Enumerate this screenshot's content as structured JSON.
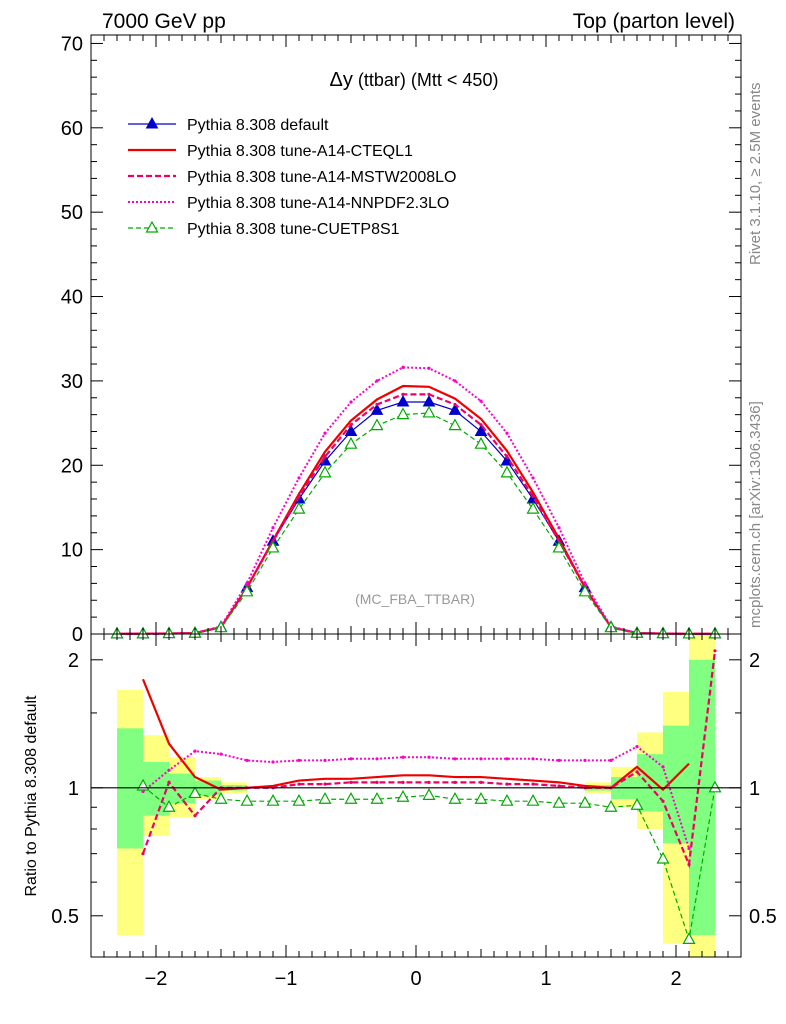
{
  "header": {
    "energy_label": "7000 GeV pp",
    "process_label": "Top (parton level)"
  },
  "side_text": {
    "rivet": "Rivet 3.1.10, ≥ 2.5M events",
    "source": "mcplots.cern.ch [arXiv:1306.3436]"
  },
  "chart_data": [
    {
      "type": "line",
      "panel": "main",
      "title_main": "Δy",
      "title_rest": " (ttbar) (Mtt < 450)",
      "watermark": "(MC_FBA_TTBAR)",
      "xlim": [
        -2.5,
        2.5
      ],
      "ylim": [
        0,
        71
      ],
      "yticks": [
        0,
        10,
        20,
        30,
        40,
        50,
        60,
        70
      ],
      "x": [
        -2.3,
        -2.1,
        -1.9,
        -1.7,
        -1.5,
        -1.3,
        -1.1,
        -0.9,
        -0.7,
        -0.5,
        -0.3,
        -0.1,
        0.1,
        0.3,
        0.5,
        0.7,
        0.9,
        1.1,
        1.3,
        1.5,
        1.7,
        1.9,
        2.1,
        2.3
      ],
      "series": [
        {
          "name": "Pythia 8.308 default",
          "color": "#0000cc",
          "values": [
            0.02,
            0.02,
            0.05,
            0.1,
            0.8,
            5.5,
            11.0,
            16.0,
            20.5,
            24.0,
            26.5,
            27.5,
            27.5,
            26.5,
            24.0,
            20.5,
            16.0,
            11.0,
            5.5,
            0.8,
            0.1,
            0.05,
            0.02,
            0.02
          ]
        },
        {
          "name": "Pythia 8.308 tune-A14-CTEQL1",
          "color": "#ee0000",
          "values": [
            0.02,
            0.04,
            0.06,
            0.11,
            0.8,
            5.5,
            11.1,
            16.6,
            21.6,
            25.3,
            27.8,
            29.4,
            29.3,
            27.9,
            25.5,
            21.7,
            16.8,
            11.3,
            5.5,
            0.8,
            0.12,
            0.05,
            0.02,
            0.02
          ]
        },
        {
          "name": "Pythia 8.308 tune-A14-MSTW2008LO",
          "color": "#ee0066",
          "values": [
            0.02,
            0.02,
            0.05,
            0.09,
            0.8,
            5.5,
            11.0,
            16.3,
            21.0,
            24.8,
            27.2,
            28.4,
            28.4,
            27.2,
            24.8,
            21.0,
            16.3,
            11.0,
            5.5,
            0.8,
            0.09,
            0.05,
            0.02,
            0.02
          ]
        },
        {
          "name": "Pythia 8.308 tune-A14-NNPDF2.3LO",
          "color": "#ff00cc",
          "values": [
            0.02,
            0.03,
            0.06,
            0.12,
            0.9,
            6.0,
            12.6,
            18.5,
            23.8,
            27.5,
            30.0,
            31.6,
            31.5,
            30.0,
            27.6,
            23.8,
            18.5,
            12.6,
            6.0,
            0.9,
            0.12,
            0.06,
            0.03,
            0.02
          ]
        },
        {
          "name": "Pythia 8.308 tune-CUETP8S1",
          "color": "#00aa00",
          "values": [
            0.02,
            0.02,
            0.05,
            0.09,
            0.75,
            5.0,
            10.2,
            14.8,
            19.1,
            22.5,
            24.7,
            26.0,
            26.2,
            24.7,
            22.5,
            19.1,
            14.8,
            10.2,
            5.0,
            0.75,
            0.09,
            0.04,
            0.01,
            0.02
          ]
        }
      ]
    },
    {
      "type": "line",
      "panel": "ratio",
      "ylabel": "Ratio to Pythia 8.308 default",
      "ylim": [
        0.4,
        2.3
      ],
      "yscale": "log",
      "xticks": [
        -2,
        -1,
        0,
        1,
        2
      ],
      "xtick_labels": [
        "−2",
        "−1",
        "0",
        "1",
        "2"
      ],
      "yticks": [
        0.5,
        1,
        2
      ],
      "ytick_labels": [
        "0.5",
        "1",
        "2"
      ],
      "x": [
        -2.1,
        -1.9,
        -1.7,
        -1.5,
        -1.3,
        -1.1,
        -0.9,
        -0.7,
        -0.5,
        -0.3,
        -0.1,
        0.1,
        0.3,
        0.5,
        0.7,
        0.9,
        1.1,
        1.3,
        1.5,
        1.7,
        1.9,
        2.1,
        2.3
      ],
      "band_x": [
        -2.2,
        -2.0,
        -1.8,
        -1.6,
        -1.4,
        1.4,
        1.6,
        1.8,
        2.0,
        2.2
      ],
      "band_outer": [
        [
          0.45,
          1.7
        ],
        [
          0.77,
          1.33
        ],
        [
          0.85,
          1.18
        ],
        [
          0.94,
          1.06
        ],
        [
          0.97,
          1.03
        ],
        [
          0.97,
          1.03
        ],
        [
          0.9,
          1.12
        ],
        [
          0.8,
          1.35
        ],
        [
          0.43,
          1.68
        ],
        [
          0.35,
          2.3
        ]
      ],
      "band_inner": [
        [
          0.72,
          1.38
        ],
        [
          0.86,
          1.15
        ],
        [
          0.92,
          1.08
        ],
        [
          0.96,
          1.04
        ],
        [
          0.985,
          1.015
        ],
        [
          0.985,
          1.015
        ],
        [
          0.94,
          1.06
        ],
        [
          0.88,
          1.2
        ],
        [
          0.74,
          1.4
        ],
        [
          0.45,
          2.0
        ]
      ],
      "band_colors": {
        "outer": "#ffff80",
        "inner": "#80ff80"
      },
      "series": [
        {
          "name": "Pythia 8.308 default",
          "color": "#0000cc",
          "values": [
            1.0,
            1.0,
            1.0,
            1.0,
            1.0,
            1.0,
            1.0,
            1.0,
            1.0,
            1.0,
            1.0,
            1.0,
            1.0,
            1.0,
            1.0,
            1.0,
            1.0,
            1.0,
            1.0,
            1.0,
            1.0,
            1.0,
            1.0
          ]
        },
        {
          "name": "Pythia 8.308 tune-A14-CTEQL1",
          "color": "#ee0000",
          "values": [
            1.8,
            1.27,
            1.06,
            0.99,
            1.0,
            1.01,
            1.04,
            1.05,
            1.05,
            1.06,
            1.07,
            1.07,
            1.06,
            1.06,
            1.05,
            1.04,
            1.03,
            1.01,
            1.0,
            1.12,
            0.99,
            1.14,
            null
          ]
        },
        {
          "name": "Pythia 8.308 tune-A14-MSTW2008LO",
          "color": "#ee0066",
          "values": [
            0.7,
            1.03,
            0.86,
            1.0,
            1.0,
            1.0,
            1.02,
            1.02,
            1.03,
            1.03,
            1.03,
            1.03,
            1.03,
            1.03,
            1.02,
            1.02,
            1.01,
            1.0,
            1.0,
            1.09,
            0.93,
            0.66,
            2.1
          ]
        },
        {
          "name": "Pythia 8.308 tune-A14-NNPDF2.3LO",
          "color": "#ff00cc",
          "values": [
            0.98,
            1.1,
            1.22,
            1.2,
            1.16,
            1.15,
            1.16,
            1.16,
            1.17,
            1.17,
            1.18,
            1.18,
            1.17,
            1.17,
            1.17,
            1.17,
            1.16,
            1.16,
            1.16,
            1.25,
            1.12,
            0.72,
            null
          ]
        },
        {
          "name": "Pythia 8.308 tune-CUETP8S1",
          "color": "#00aa00",
          "values": [
            1.01,
            0.9,
            0.97,
            0.94,
            0.93,
            0.93,
            0.93,
            0.94,
            0.94,
            0.94,
            0.95,
            0.96,
            0.94,
            0.94,
            0.93,
            0.93,
            0.92,
            0.92,
            0.9,
            0.91,
            0.68,
            0.44,
            1.0
          ]
        }
      ]
    }
  ]
}
